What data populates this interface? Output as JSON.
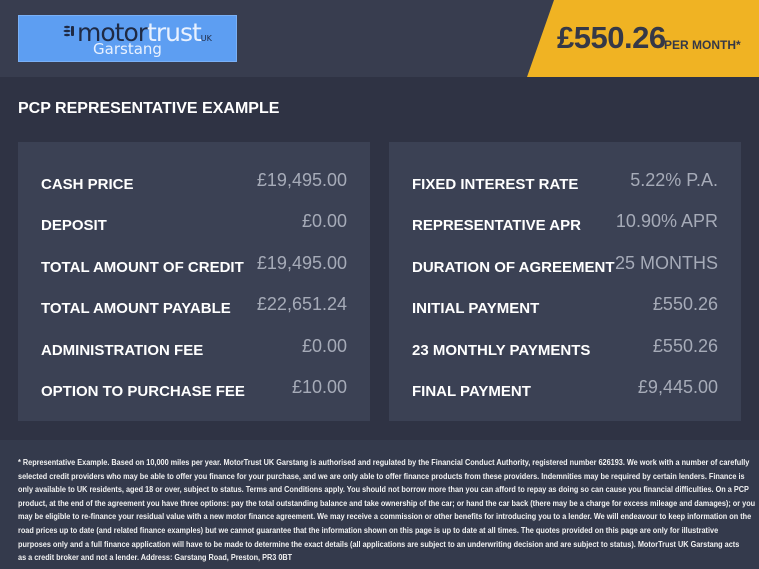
{
  "logo": {
    "brand_a": "motor",
    "brand_b": "trust",
    "brand_uk": "UK",
    "location": "Garstang"
  },
  "price": {
    "amount": "£550.26",
    "per_month": "PER MONTH*"
  },
  "colors": {
    "accent": "#f0b323",
    "logo_bg": "#5d9ef2",
    "panel": "#3b4154",
    "background": "#2f3344"
  },
  "title": "PCP REPRESENTATIVE EXAMPLE",
  "left": [
    {
      "label": "CASH PRICE",
      "value": "£19,495.00"
    },
    {
      "label": "DEPOSIT",
      "value": "£0.00"
    },
    {
      "label": "TOTAL AMOUNT OF CREDIT",
      "value": "£19,495.00"
    },
    {
      "label": "TOTAL AMOUNT PAYABLE",
      "value": "£22,651.24"
    },
    {
      "label": "ADMINISTRATION FEE",
      "value": "£0.00"
    },
    {
      "label": "OPTION TO PURCHASE FEE",
      "value": "£10.00"
    }
  ],
  "right": [
    {
      "label": "FIXED INTEREST RATE",
      "value": "5.22% P.A."
    },
    {
      "label": "REPRESENTATIVE APR",
      "value": "10.90% APR"
    },
    {
      "label": "DURATION OF AGREEMENT",
      "value": "25 MONTHS"
    },
    {
      "label": "INITIAL PAYMENT",
      "value": "£550.26"
    },
    {
      "label": "23 MONTHLY PAYMENTS",
      "value": "£550.26"
    },
    {
      "label": "FINAL PAYMENT",
      "value": "£9,445.00"
    }
  ],
  "disclaimer": [
    "* Representative Example. Based on 10,000 miles per year. MotorTrust UK Garstang is authorised and regulated by the Financial Conduct Authority, registered number 626193. We work with a number of carefully",
    "selected credit providers who may be able to offer you finance for your purchase, and we are only able to offer finance products from these providers. Indemnities may be required by certain lenders. Finance is",
    "only available to UK residents, aged 18 or over, subject to status. Terms and Conditions apply. You should not borrow more than you can afford to repay as doing so can cause you financial difficulties. On a PCP",
    "product, at the end of the agreement you have three options: pay the total outstanding balance and take ownership of the car; or hand the car back (there may be a charge for excess mileage and damages); or you",
    "may be eligible to re-finance your residual value with a new motor finance agreement. We may receive a commission or other benefits for introducing you to a lender. We will endeavour to keep information on the",
    "road prices up to date (and related finance examples) but we cannot guarantee that the information shown on this page is up to date at all times. The quotes provided on this page are only for illustrative",
    "purposes only and a full finance application will have to be made to determine the exact details (all applications are subject to an underwriting decision and are subject to status). MotorTrust UK Garstang acts",
    "as a credit broker and not a lender. Address: Garstang Road, Preston, PR3 0BT"
  ]
}
